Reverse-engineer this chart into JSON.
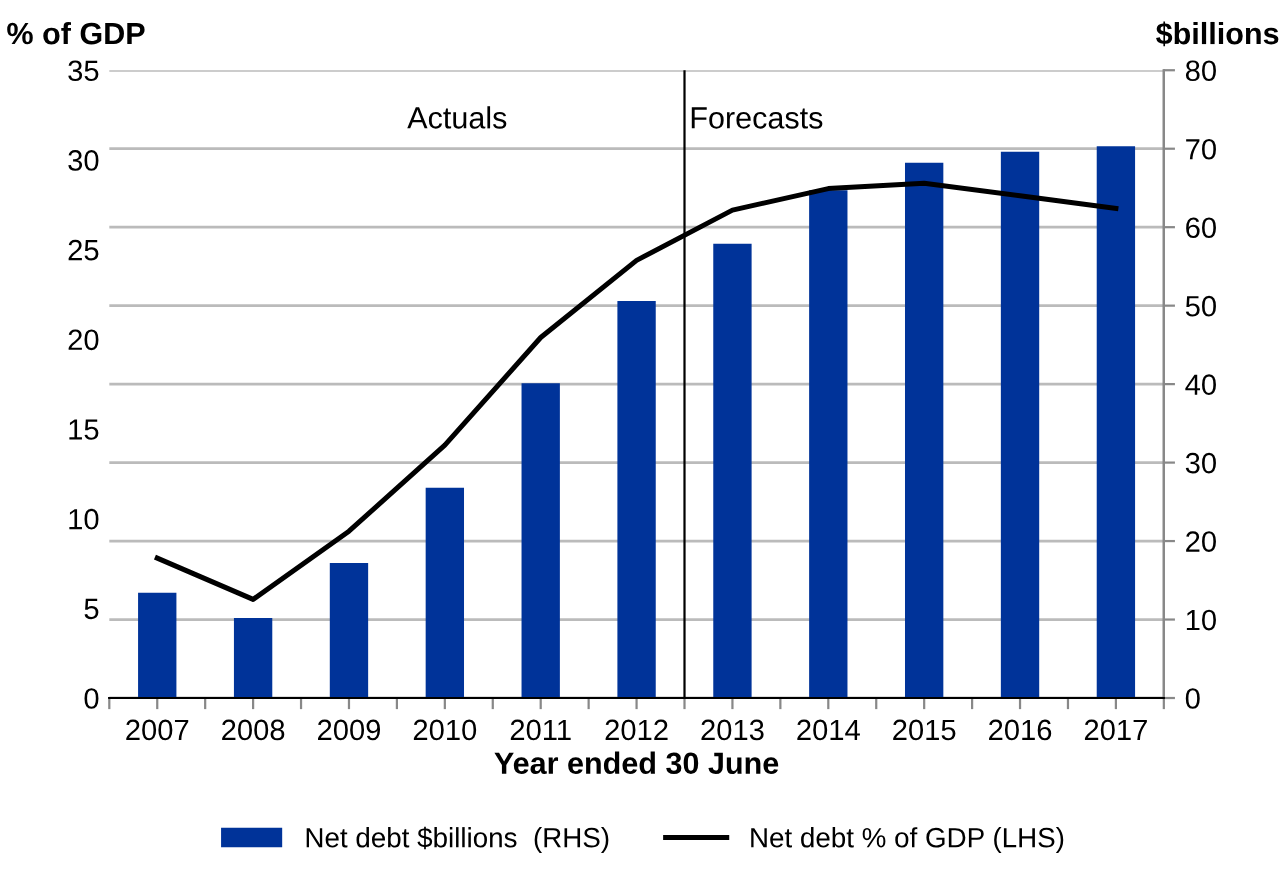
{
  "chart_data": {
    "type": "bar",
    "xlabel": "Year ended 30 June",
    "ylabel": "% of GDP",
    "y2label": "$billions",
    "x": [
      2007,
      2008,
      2009,
      2010,
      2011,
      2012,
      2013,
      2014,
      2015,
      2016,
      2017
    ],
    "series": [
      {
        "name": "Net debt $billions  (RHS)",
        "axis": "y2",
        "color": "#003399",
        "values": [
          13.4,
          10.2,
          17.2,
          26.8,
          40.1,
          50.6,
          57.9,
          64.7,
          68.2,
          69.6,
          70.3
        ]
      },
      {
        "name": "Net debt % of GDP (LHS)",
        "type": "line",
        "color": "#000000",
        "values": [
          7.8,
          5.5,
          9.3,
          14.1,
          20.1,
          24.4,
          27.2,
          28.4,
          28.7,
          28.0,
          27.3
        ]
      }
    ],
    "xlim": [
      2006.5,
      2017.5
    ],
    "xticks": [
      {
        "value": 2006.5,
        "label": null
      },
      2007,
      {
        "value": 2007.5,
        "label": null
      },
      2008,
      {
        "value": 2008.5,
        "label": null
      },
      2009,
      {
        "value": 2009.5,
        "label": null
      },
      2010,
      {
        "value": 2010.5,
        "label": null
      },
      2011,
      {
        "value": 2011.5,
        "label": null
      },
      2012,
      {
        "value": 2012.5,
        "label": null
      },
      2013,
      {
        "value": 2013.5,
        "label": null
      },
      2014,
      {
        "value": 2014.5,
        "label": null
      },
      2015,
      {
        "value": 2015.5,
        "label": null
      },
      2016,
      {
        "value": 2016.5,
        "label": null
      },
      2017,
      {
        "value": 2017.5,
        "label": null
      }
    ],
    "ylim": [
      0,
      35
    ],
    "yticks": [
      0,
      5,
      10,
      15,
      20,
      25,
      30,
      35
    ],
    "y2lim": [
      0,
      80
    ],
    "y2ticks": [
      0,
      10,
      20,
      30,
      40,
      50,
      60,
      70,
      80
    ],
    "ref_lines": [
      {
        "axis": "x",
        "value": 2012.5,
        "color": "#000000"
      }
    ],
    "annotations": [
      "Actuals",
      "Forecasts"
    ],
    "grid": "y",
    "legend": "bottom",
    "marker": "none",
    "line_style": "solid"
  }
}
